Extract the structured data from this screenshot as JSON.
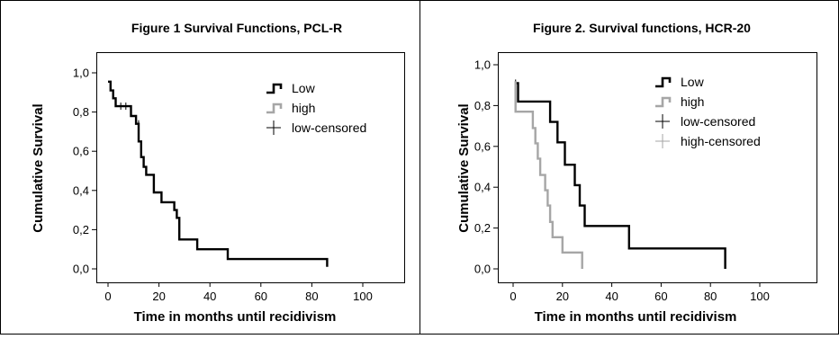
{
  "chart_data": [
    {
      "type": "line",
      "subtype": "kaplan-meier-step",
      "title": "Figure 1 Survival Functions, PCL-R",
      "xlabel": "Time in months until recidivism",
      "ylabel": "Cumulative Survival",
      "xlim": [
        0,
        100
      ],
      "ylim": [
        0,
        1
      ],
      "x_ticks": [
        "0",
        "20",
        "40",
        "60",
        "80",
        "100"
      ],
      "y_ticks": [
        "0,0",
        "0,2",
        "0,4",
        "0,6",
        "0,8",
        "1,0"
      ],
      "grid": false,
      "legend_position": "top-right",
      "legend": [
        {
          "label": "Low",
          "kind": "line",
          "color": "#000000"
        },
        {
          "label": "high",
          "kind": "line",
          "color": "#a6a6a6"
        },
        {
          "label": "low-censored",
          "kind": "censor",
          "color": "#000000"
        }
      ],
      "series": [
        {
          "name": "Low",
          "color": "#000000",
          "points": [
            [
              0,
              0.955
            ],
            [
              1,
              0.955
            ],
            [
              1,
              0.91
            ],
            [
              2,
              0.91
            ],
            [
              2,
              0.87
            ],
            [
              3,
              0.87
            ],
            [
              3,
              0.83
            ],
            [
              9,
              0.83
            ],
            [
              9,
              0.78
            ],
            [
              11,
              0.78
            ],
            [
              11,
              0.74
            ],
            [
              12,
              0.74
            ],
            [
              12,
              0.65
            ],
            [
              13,
              0.65
            ],
            [
              13,
              0.57
            ],
            [
              14,
              0.57
            ],
            [
              14,
              0.52
            ],
            [
              15,
              0.52
            ],
            [
              15,
              0.48
            ],
            [
              18,
              0.48
            ],
            [
              18,
              0.39
            ],
            [
              21,
              0.39
            ],
            [
              21,
              0.34
            ],
            [
              26,
              0.34
            ],
            [
              26,
              0.3
            ],
            [
              27,
              0.3
            ],
            [
              27,
              0.26
            ],
            [
              28,
              0.26
            ],
            [
              28,
              0.15
            ],
            [
              35,
              0.15
            ],
            [
              35,
              0.1
            ],
            [
              47,
              0.1
            ],
            [
              47,
              0.05
            ],
            [
              86,
              0.05
            ],
            [
              86,
              0.01
            ]
          ],
          "censored": [
            [
              5,
              0.83
            ],
            [
              7,
              0.83
            ],
            [
              12,
              0.74
            ]
          ]
        }
      ]
    },
    {
      "type": "line",
      "subtype": "kaplan-meier-step",
      "title": "Figure 2. Survival functions, HCR-20",
      "xlabel": "Time in months until recidivism",
      "ylabel": "Cumulative Survival",
      "xlim": [
        0,
        100
      ],
      "ylim": [
        0,
        1
      ],
      "x_ticks": [
        "0",
        "20",
        "40",
        "60",
        "80",
        "100"
      ],
      "y_ticks": [
        "0,0",
        "0,2",
        "0,4",
        "0,6",
        "0,8",
        "1,0"
      ],
      "grid": false,
      "legend_position": "top-right",
      "legend": [
        {
          "label": "Low",
          "kind": "line",
          "color": "#000000"
        },
        {
          "label": "high",
          "kind": "line",
          "color": "#a6a6a6"
        },
        {
          "label": "low-censored",
          "kind": "censor",
          "color": "#000000"
        },
        {
          "label": "high-censored",
          "kind": "censor",
          "color": "#a6a6a6"
        }
      ],
      "series": [
        {
          "name": "Low",
          "color": "#000000",
          "points": [
            [
              1,
              0.91
            ],
            [
              2,
              0.91
            ],
            [
              2,
              0.82
            ],
            [
              15,
              0.82
            ],
            [
              15,
              0.72
            ],
            [
              18,
              0.72
            ],
            [
              18,
              0.62
            ],
            [
              21,
              0.62
            ],
            [
              21,
              0.51
            ],
            [
              25,
              0.51
            ],
            [
              25,
              0.41
            ],
            [
              27,
              0.41
            ],
            [
              27,
              0.31
            ],
            [
              29,
              0.31
            ],
            [
              29,
              0.21
            ],
            [
              47,
              0.21
            ],
            [
              47,
              0.1
            ],
            [
              86,
              0.1
            ],
            [
              86,
              0.0
            ]
          ],
          "censored": [
            [
              1,
              0.91
            ]
          ]
        },
        {
          "name": "high",
          "color": "#a6a6a6",
          "points": [
            [
              1,
              0.92
            ],
            [
              1,
              0.77
            ],
            [
              8,
              0.77
            ],
            [
              8,
              0.69
            ],
            [
              9,
              0.69
            ],
            [
              9,
              0.615
            ],
            [
              10,
              0.615
            ],
            [
              10,
              0.54
            ],
            [
              11,
              0.54
            ],
            [
              11,
              0.46
            ],
            [
              13,
              0.46
            ],
            [
              13,
              0.385
            ],
            [
              14,
              0.385
            ],
            [
              14,
              0.31
            ],
            [
              15,
              0.31
            ],
            [
              15,
              0.23
            ],
            [
              16,
              0.23
            ],
            [
              16,
              0.155
            ],
            [
              20,
              0.155
            ],
            [
              20,
              0.08
            ],
            [
              28,
              0.08
            ],
            [
              28,
              0.0
            ]
          ],
          "censored": [
            [
              1,
              0.9
            ]
          ]
        }
      ]
    }
  ]
}
